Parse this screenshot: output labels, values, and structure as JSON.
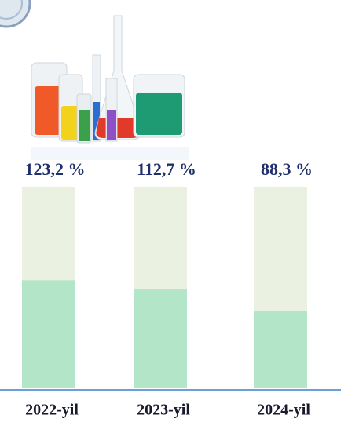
{
  "chart_data": {
    "type": "bar",
    "categories": [
      "2022-yil",
      "2023-yil",
      "2024-yil"
    ],
    "values": [
      123.2,
      112.7,
      88.3
    ],
    "value_labels": [
      "123,2 %",
      "112,7 %",
      "88,3 %"
    ],
    "color": "#b3e6c8",
    "ylim": [
      0,
      230
    ]
  }
}
